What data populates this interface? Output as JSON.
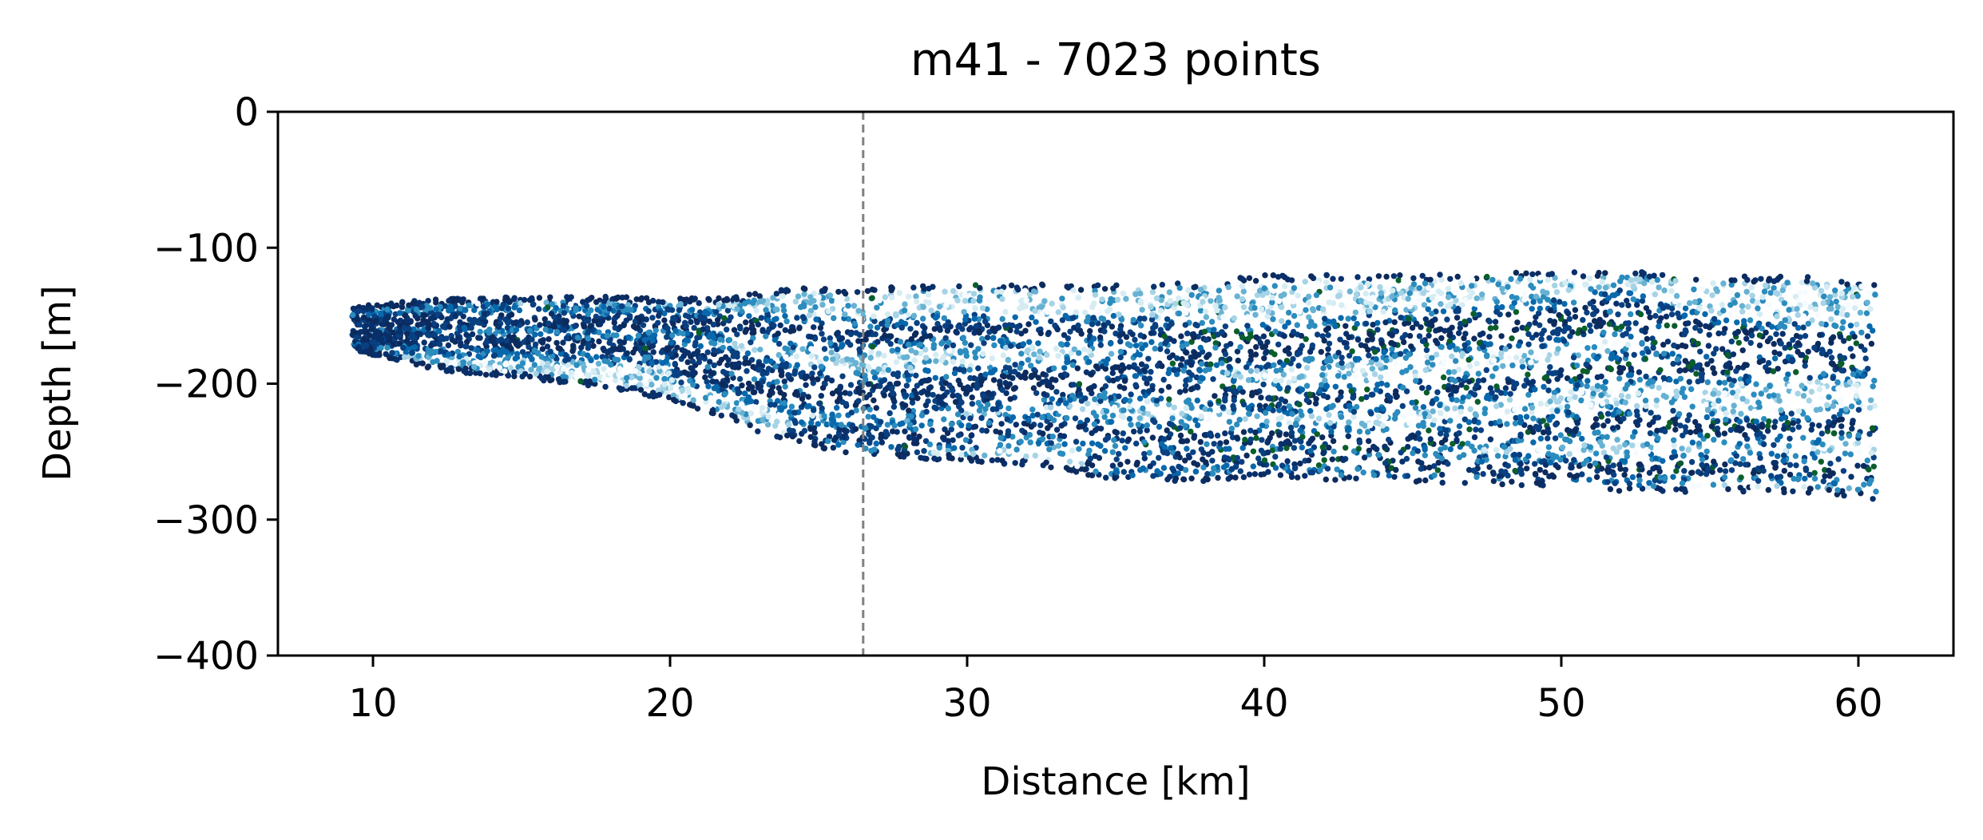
{
  "chart_data": {
    "type": "scatter",
    "title": "m41 - 7023 points",
    "xlabel": "Distance [km]",
    "ylabel": "Depth [m]",
    "xlim": [
      6.8,
      63.2
    ],
    "ylim": [
      -400,
      0
    ],
    "xticks": [
      10,
      20,
      30,
      40,
      50,
      60
    ],
    "yticks": [
      0,
      -100,
      -200,
      -300,
      -400
    ],
    "xtick_labels": [
      "10",
      "20",
      "30",
      "40",
      "50",
      "60"
    ],
    "ytick_labels": [
      "0",
      "−100",
      "−200",
      "−300",
      "−400"
    ],
    "grid": false,
    "vline": {
      "x": 26.5,
      "color": "#808080",
      "style": "dashed"
    },
    "colormap": [
      "#f7fbff",
      "#d6ecf3",
      "#a6d3e6",
      "#67b2d3",
      "#2b8cbe",
      "#0868ac",
      "#084081",
      "#08306b",
      "#0d2a5c",
      "#0b5e2a"
    ],
    "point_count": 7023,
    "envelope": {
      "x": [
        9.3,
        12,
        15,
        18,
        20,
        22,
        23,
        24.5,
        26.5,
        28,
        30,
        33,
        35,
        38,
        40,
        43,
        45,
        48,
        50,
        52,
        53,
        55,
        58,
        60.6
      ],
      "top": [
        -143,
        -138,
        -136,
        -136,
        -137,
        -137,
        -133,
        -128,
        -131,
        -128,
        -127,
        -127,
        -127,
        -125,
        -120,
        -120,
        -120,
        -118,
        -118,
        -116,
        -118,
        -121,
        -121,
        -125
      ],
      "bottom": [
        -175,
        -190,
        -196,
        -203,
        -213,
        -226,
        -236,
        -245,
        -253,
        -255,
        -257,
        -262,
        -272,
        -272,
        -268,
        -272,
        -272,
        -275,
        -275,
        -280,
        -280,
        -280,
        -280,
        -285
      ]
    },
    "bands": [
      {
        "x": [
          9.3,
          15,
          20,
          26.5,
          30,
          35,
          40,
          45,
          50,
          52,
          53,
          56,
          60.6
        ],
        "y": [
          -155,
          -153,
          -155,
          -165,
          -160,
          -162,
          -168,
          -158,
          -150,
          -140,
          -150,
          -165,
          -170
        ]
      },
      {
        "x": [
          9.3,
          15,
          20,
          24,
          26.5,
          30,
          35,
          38,
          42,
          46,
          50,
          52,
          53,
          56,
          60.6
        ],
        "y": [
          -165,
          -170,
          -175,
          -195,
          -205,
          -200,
          -190,
          -180,
          -175,
          -165,
          -160,
          -152,
          -165,
          -175,
          -175
        ]
      },
      {
        "x": [
          20,
          24,
          28,
          32,
          36,
          40,
          44,
          48,
          52,
          56,
          60.6
        ],
        "y": [
          -185,
          -210,
          -215,
          -205,
          -200,
          -212,
          -210,
          -200,
          -188,
          -188,
          -185
        ]
      },
      {
        "x": [
          24,
          28,
          32,
          36,
          40,
          44,
          48,
          52,
          56,
          60.6
        ],
        "y": [
          -235,
          -240,
          -232,
          -238,
          -240,
          -245,
          -235,
          -228,
          -235,
          -230
        ]
      },
      {
        "x": [
          34,
          38,
          42,
          46,
          50,
          54,
          58,
          60.6
        ],
        "y": [
          -258,
          -255,
          -255,
          -262,
          -265,
          -262,
          -262,
          -265
        ]
      }
    ]
  }
}
